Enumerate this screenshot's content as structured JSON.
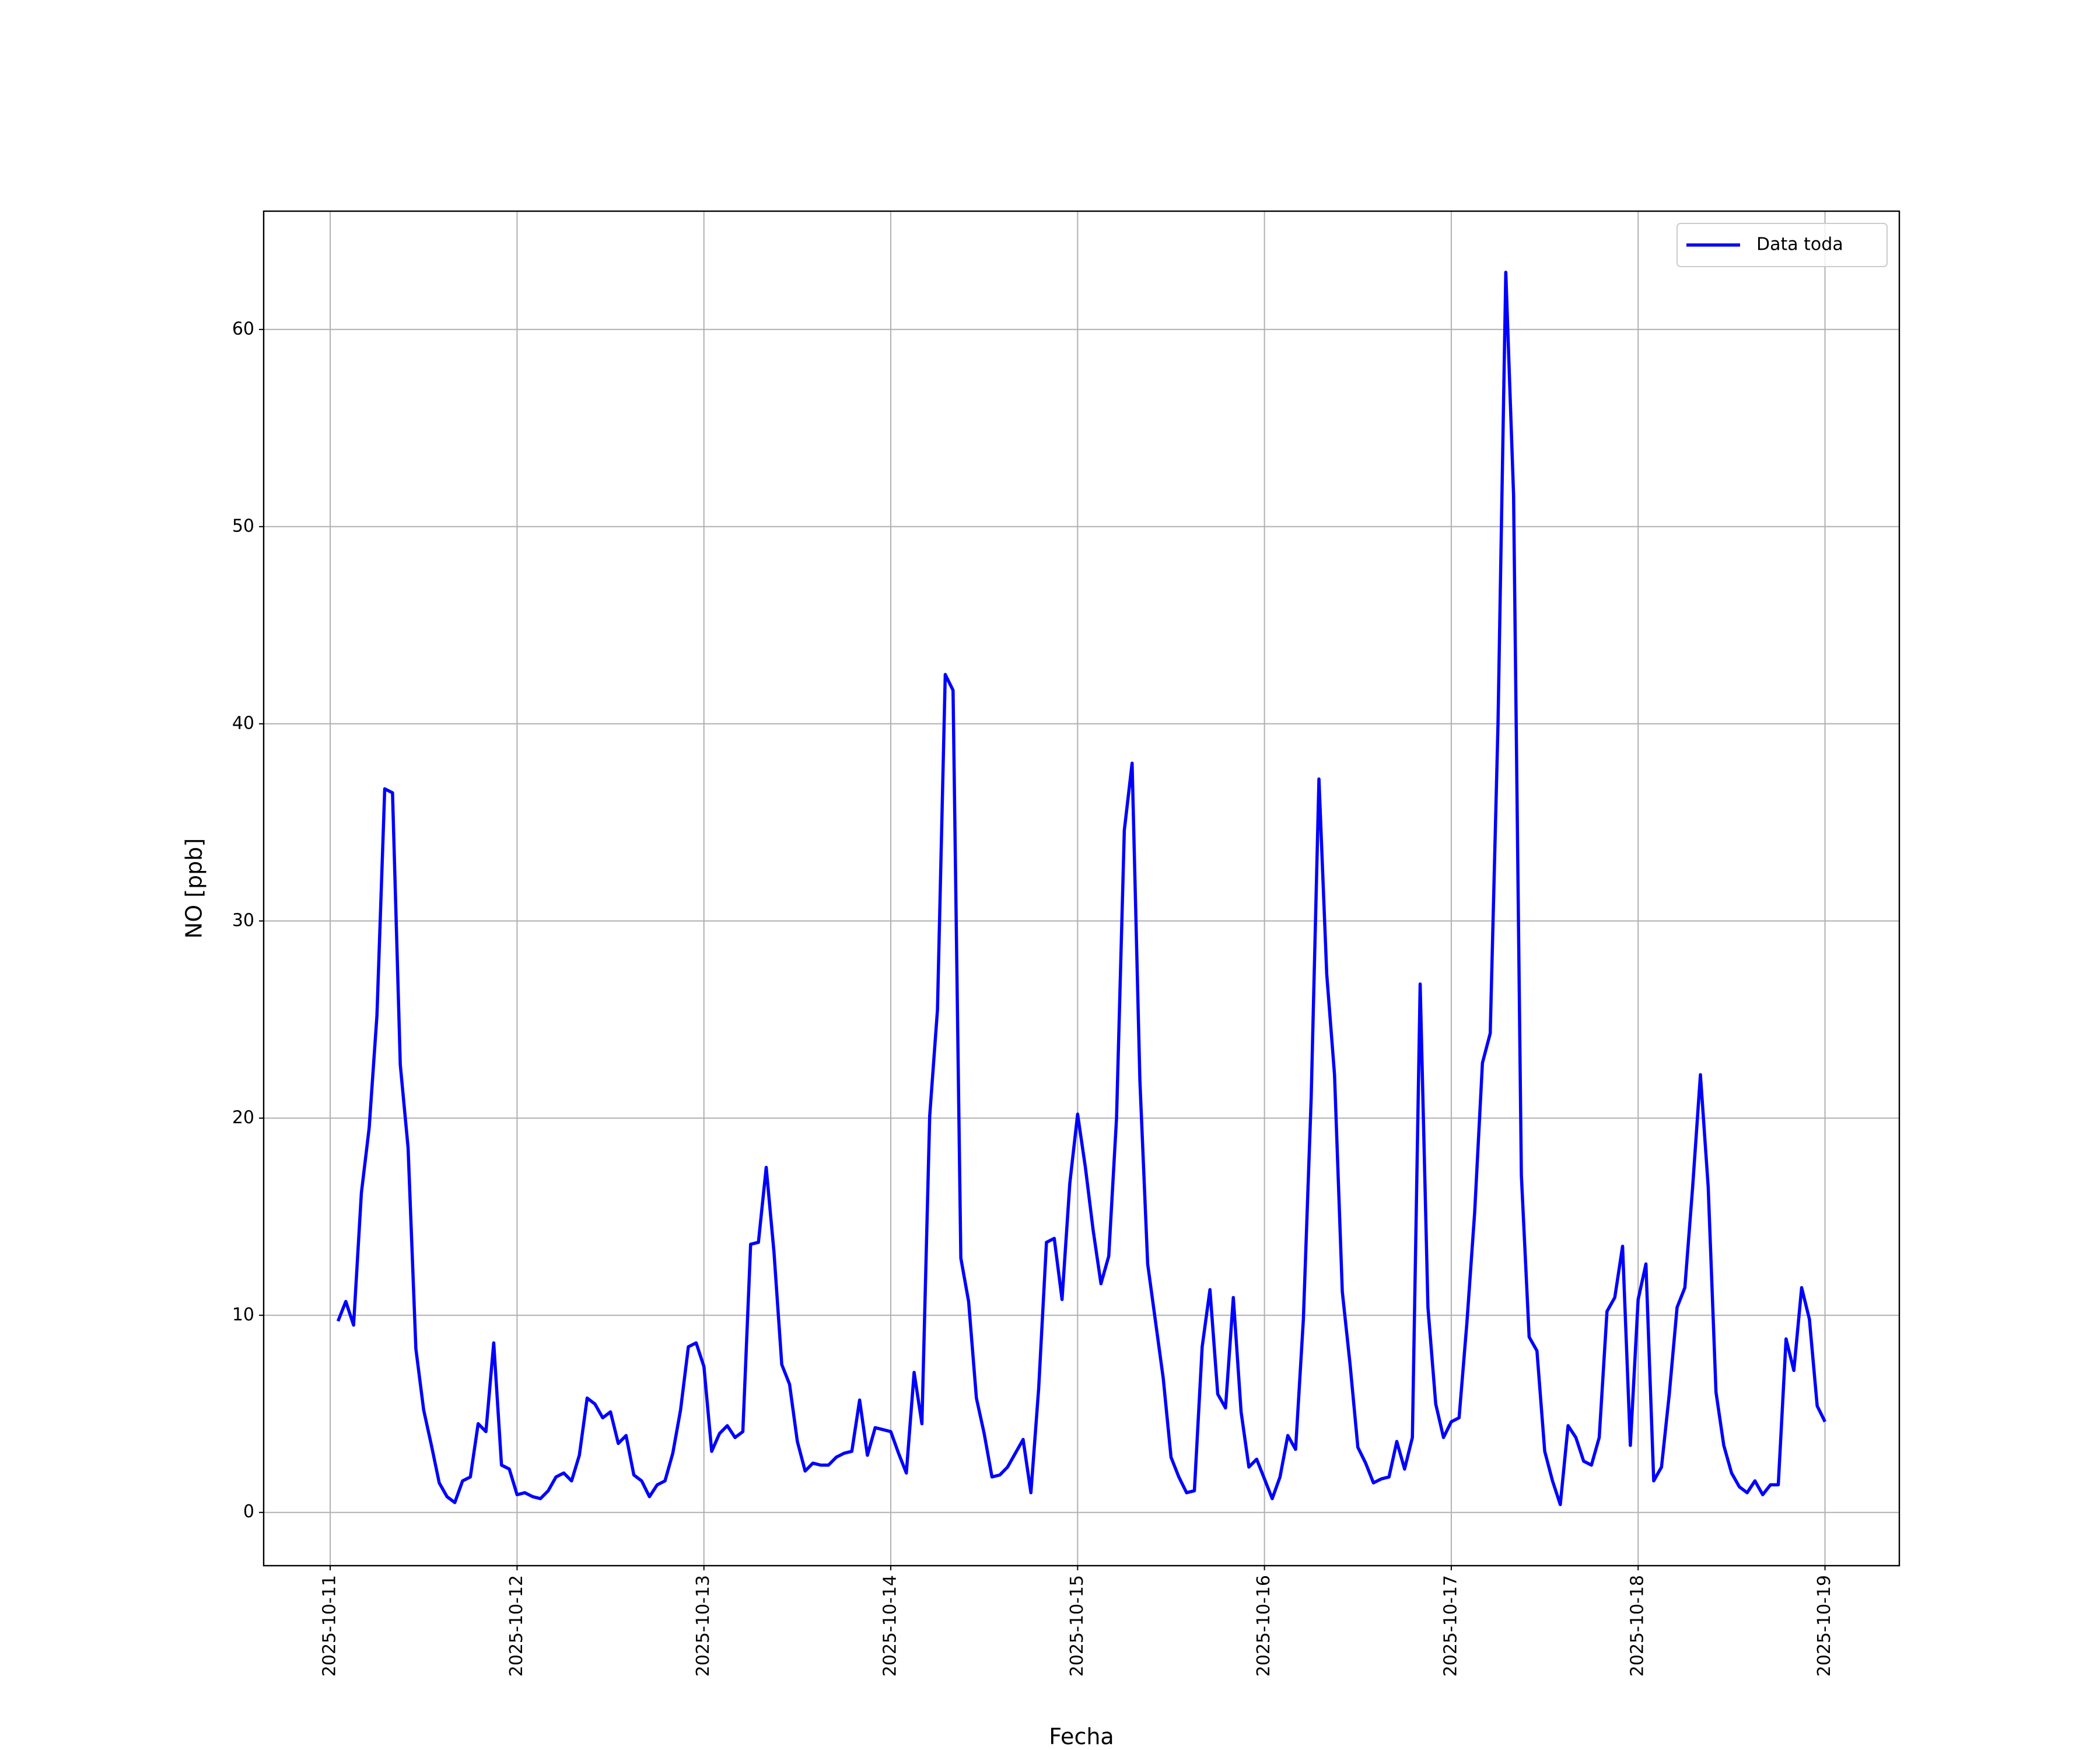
{
  "chart_data": {
    "type": "line",
    "xlabel": "Fecha",
    "ylabel": "NO [ppb]",
    "x": [
      "2025-10-11T01:00",
      "2025-10-11T02:00",
      "2025-10-11T03:00",
      "2025-10-11T04:00",
      "2025-10-11T05:00",
      "2025-10-11T06:00",
      "2025-10-11T07:00",
      "2025-10-11T08:00",
      "2025-10-11T09:00",
      "2025-10-11T10:00",
      "2025-10-11T11:00",
      "2025-10-11T12:00",
      "2025-10-11T13:00",
      "2025-10-11T14:00",
      "2025-10-11T15:00",
      "2025-10-11T16:00",
      "2025-10-11T17:00",
      "2025-10-11T18:00",
      "2025-10-11T19:00",
      "2025-10-11T20:00",
      "2025-10-11T21:00",
      "2025-10-11T22:00",
      "2025-10-11T23:00",
      "2025-10-12T00:00",
      "2025-10-12T01:00",
      "2025-10-12T02:00",
      "2025-10-12T03:00",
      "2025-10-12T04:00",
      "2025-10-12T05:00",
      "2025-10-12T06:00",
      "2025-10-12T07:00",
      "2025-10-12T08:00",
      "2025-10-12T09:00",
      "2025-10-12T10:00",
      "2025-10-12T11:00",
      "2025-10-12T12:00",
      "2025-10-12T13:00",
      "2025-10-12T14:00",
      "2025-10-12T15:00",
      "2025-10-12T16:00",
      "2025-10-12T17:00",
      "2025-10-12T18:00",
      "2025-10-12T19:00",
      "2025-10-12T20:00",
      "2025-10-12T21:00",
      "2025-10-12T22:00",
      "2025-10-12T23:00",
      "2025-10-13T00:00",
      "2025-10-13T01:00",
      "2025-10-13T02:00",
      "2025-10-13T03:00",
      "2025-10-13T04:00",
      "2025-10-13T05:00",
      "2025-10-13T06:00",
      "2025-10-13T07:00",
      "2025-10-13T08:00",
      "2025-10-13T09:00",
      "2025-10-13T10:00",
      "2025-10-13T11:00",
      "2025-10-13T12:00",
      "2025-10-13T13:00",
      "2025-10-13T14:00",
      "2025-10-13T15:00",
      "2025-10-13T16:00",
      "2025-10-13T17:00",
      "2025-10-13T18:00",
      "2025-10-13T19:00",
      "2025-10-13T20:00",
      "2025-10-13T21:00",
      "2025-10-13T22:00",
      "2025-10-13T23:00",
      "2025-10-14T00:00",
      "2025-10-14T01:00",
      "2025-10-14T02:00",
      "2025-10-14T03:00",
      "2025-10-14T04:00",
      "2025-10-14T05:00",
      "2025-10-14T06:00",
      "2025-10-14T07:00",
      "2025-10-14T08:00",
      "2025-10-14T09:00",
      "2025-10-14T10:00",
      "2025-10-14T11:00",
      "2025-10-14T12:00",
      "2025-10-14T13:00",
      "2025-10-14T14:00",
      "2025-10-14T15:00",
      "2025-10-14T16:00",
      "2025-10-14T17:00",
      "2025-10-14T18:00",
      "2025-10-14T19:00",
      "2025-10-14T20:00",
      "2025-10-14T21:00",
      "2025-10-14T22:00",
      "2025-10-14T23:00",
      "2025-10-15T00:00",
      "2025-10-15T01:00",
      "2025-10-15T02:00",
      "2025-10-15T03:00",
      "2025-10-15T04:00",
      "2025-10-15T05:00",
      "2025-10-15T06:00",
      "2025-10-15T07:00",
      "2025-10-15T08:00",
      "2025-10-15T09:00",
      "2025-10-15T10:00",
      "2025-10-15T11:00",
      "2025-10-15T12:00",
      "2025-10-15T13:00",
      "2025-10-15T14:00",
      "2025-10-15T15:00",
      "2025-10-15T16:00",
      "2025-10-15T17:00",
      "2025-10-15T18:00",
      "2025-10-15T19:00",
      "2025-10-15T20:00",
      "2025-10-15T21:00",
      "2025-10-15T22:00",
      "2025-10-15T23:00",
      "2025-10-16T00:00",
      "2025-10-16T01:00",
      "2025-10-16T02:00",
      "2025-10-16T03:00",
      "2025-10-16T04:00",
      "2025-10-16T05:00",
      "2025-10-16T06:00",
      "2025-10-16T07:00",
      "2025-10-16T08:00",
      "2025-10-16T09:00",
      "2025-10-16T10:00",
      "2025-10-16T11:00",
      "2025-10-16T12:00",
      "2025-10-16T13:00",
      "2025-10-16T14:00",
      "2025-10-16T15:00",
      "2025-10-16T16:00",
      "2025-10-16T17:00",
      "2025-10-16T18:00",
      "2025-10-16T19:00",
      "2025-10-16T20:00",
      "2025-10-16T21:00",
      "2025-10-16T22:00",
      "2025-10-16T23:00",
      "2025-10-17T00:00",
      "2025-10-17T01:00",
      "2025-10-17T02:00",
      "2025-10-17T03:00",
      "2025-10-17T04:00",
      "2025-10-17T05:00",
      "2025-10-17T06:00",
      "2025-10-17T07:00",
      "2025-10-17T08:00",
      "2025-10-17T09:00",
      "2025-10-17T10:00",
      "2025-10-17T11:00",
      "2025-10-17T12:00",
      "2025-10-17T13:00",
      "2025-10-17T14:00",
      "2025-10-17T15:00",
      "2025-10-17T16:00",
      "2025-10-17T17:00",
      "2025-10-17T18:00",
      "2025-10-17T19:00",
      "2025-10-17T20:00",
      "2025-10-17T21:00",
      "2025-10-17T22:00",
      "2025-10-17T23:00",
      "2025-10-18T00:00",
      "2025-10-18T01:00",
      "2025-10-18T02:00",
      "2025-10-18T03:00",
      "2025-10-18T04:00",
      "2025-10-18T05:00",
      "2025-10-18T06:00",
      "2025-10-18T07:00",
      "2025-10-18T08:00",
      "2025-10-18T09:00",
      "2025-10-18T10:00",
      "2025-10-18T11:00",
      "2025-10-18T12:00",
      "2025-10-18T13:00",
      "2025-10-18T14:00",
      "2025-10-18T15:00",
      "2025-10-18T16:00",
      "2025-10-18T17:00",
      "2025-10-18T18:00",
      "2025-10-18T19:00",
      "2025-10-18T20:00",
      "2025-10-18T21:00",
      "2025-10-18T22:00",
      "2025-10-18T23:00",
      "2025-10-19T00:00"
    ],
    "series": [
      {
        "name": "Data toda",
        "color": "#0000ff",
        "values": [
          9.7,
          10.7,
          9.5,
          16.2,
          19.5,
          25.2,
          36.7,
          36.5,
          22.7,
          18.5,
          8.3,
          5.2,
          3.4,
          1.5,
          0.8,
          0.5,
          1.6,
          1.8,
          4.5,
          4.1,
          8.6,
          2.4,
          2.2,
          0.9,
          1.0,
          0.8,
          0.7,
          1.1,
          1.8,
          2.0,
          1.6,
          2.9,
          5.8,
          5.5,
          4.8,
          5.1,
          3.5,
          3.9,
          1.9,
          1.6,
          0.8,
          1.4,
          1.6,
          3.0,
          5.2,
          8.4,
          8.6,
          7.4,
          3.1,
          4.0,
          4.4,
          3.8,
          4.1,
          13.6,
          13.7,
          17.5,
          13.2,
          7.5,
          6.5,
          3.6,
          2.1,
          2.5,
          2.4,
          2.4,
          2.8,
          3.0,
          3.1,
          5.7,
          2.9,
          4.3,
          4.2,
          4.1,
          3.0,
          2.0,
          7.1,
          4.5,
          20.1,
          25.5,
          42.5,
          41.7,
          12.9,
          10.7,
          5.8,
          4.0,
          1.8,
          1.9,
          2.3,
          3.0,
          3.7,
          1.0,
          6.3,
          13.7,
          13.9,
          10.8,
          16.7,
          20.2,
          17.5,
          14.3,
          11.6,
          13.0,
          20.0,
          34.6,
          38.0,
          21.9,
          12.6,
          9.7,
          6.8,
          2.8,
          1.8,
          1.0,
          1.1,
          8.4,
          11.3,
          6.0,
          5.3,
          10.9,
          5.1,
          2.3,
          2.7,
          1.7,
          0.7,
          1.8,
          3.9,
          3.2,
          9.8,
          21.0,
          37.2,
          27.3,
          22.2,
          11.2,
          7.5,
          3.3,
          2.5,
          1.5,
          1.7,
          1.8,
          3.6,
          2.2,
          3.8,
          26.8,
          10.4,
          5.5,
          3.8,
          4.6,
          4.8,
          9.6,
          15.2,
          22.8,
          24.3,
          40.0,
          62.9,
          51.6,
          17.1,
          8.9,
          8.2,
          3.1,
          1.6,
          0.4,
          4.4,
          3.8,
          2.6,
          2.4,
          3.8,
          10.2,
          10.9,
          13.5,
          3.4,
          10.8,
          12.6,
          1.6,
          2.3,
          6.0,
          10.4,
          11.4,
          16.5,
          22.2,
          16.5,
          6.1,
          3.4,
          2.0,
          1.3,
          1.0,
          1.6,
          0.9,
          1.4,
          1.4,
          8.8,
          7.2,
          11.4,
          9.8,
          5.4,
          4.6
        ]
      }
    ],
    "xlim": [
      "2025-10-10T15:27",
      "2025-10-19T09:33"
    ],
    "xticks": [
      "2025-10-11",
      "2025-10-12",
      "2025-10-13",
      "2025-10-14",
      "2025-10-15",
      "2025-10-16",
      "2025-10-17",
      "2025-10-18",
      "2025-10-19"
    ],
    "ylim": [
      -2.7,
      66.0
    ],
    "yticks": [
      0,
      10,
      20,
      30,
      40,
      50,
      60
    ],
    "grid": true,
    "legend": "upper right"
  }
}
